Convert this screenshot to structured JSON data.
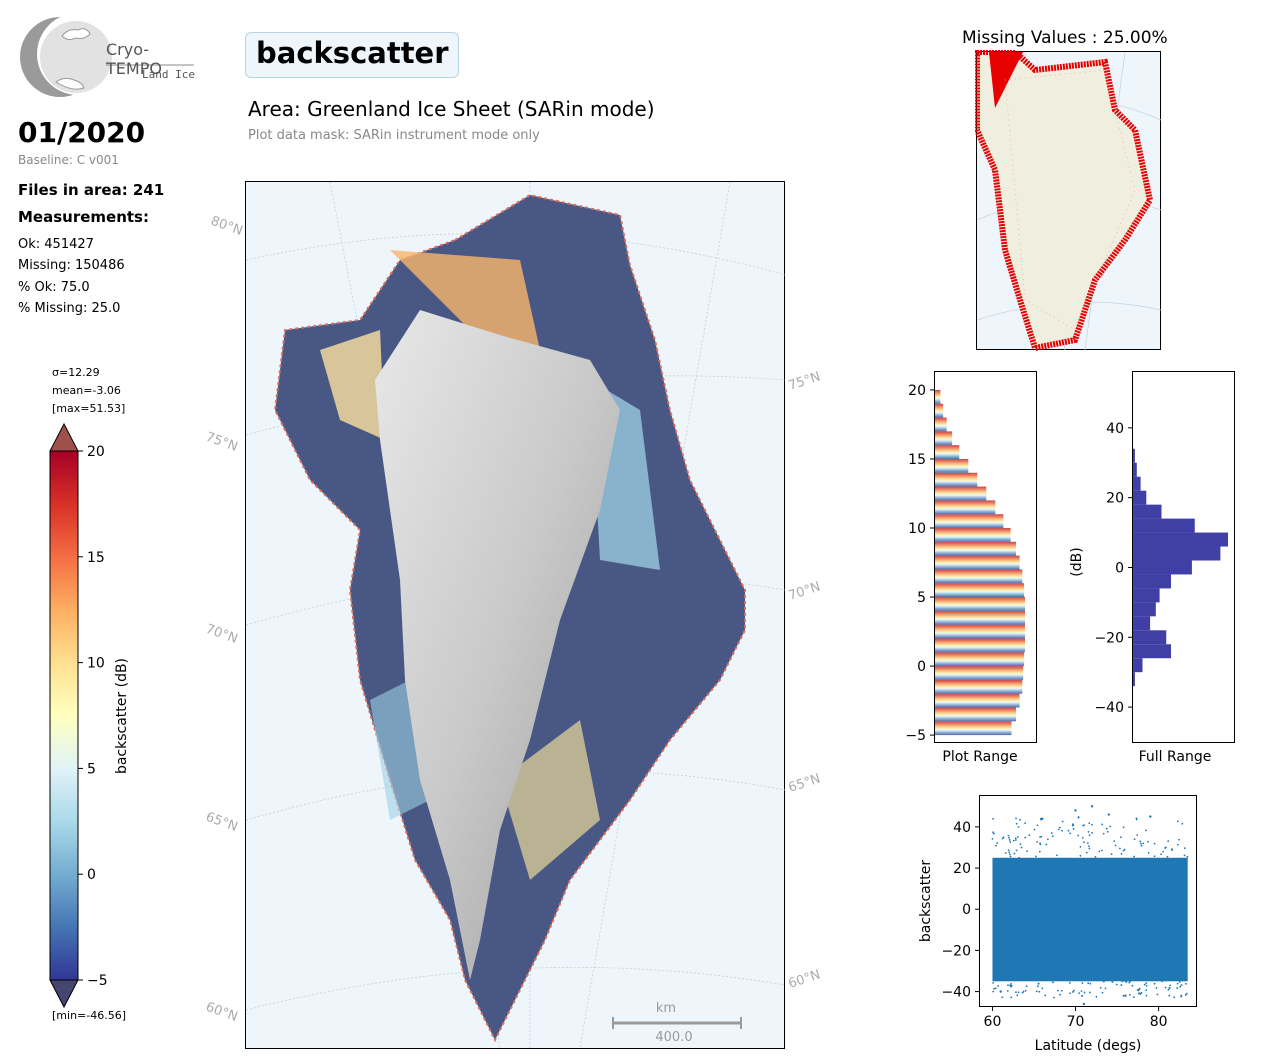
{
  "header": {
    "logo_name": "Cryo-TEMPO",
    "logo_sub": "Land Ice",
    "date": "01/2020",
    "baseline": "Baseline: C v001",
    "files_in_area": "Files in area: 241",
    "measurements_heading": "Measurements:",
    "stats": [
      "Ok: 451427",
      "Missing: 150486",
      "% Ok: 75.0",
      "% Missing: 25.0"
    ],
    "title": "backscatter",
    "area": "Area: Greenland Ice Sheet (SARin mode)",
    "mask_note": "Plot data mask: SARin instrument mode only"
  },
  "colorbar": {
    "sigma": "σ=12.29",
    "mean": "mean=-3.06",
    "max": "[max=51.53]",
    "min": "[min=-46.56]",
    "label": "backscatter (dB)",
    "ticks": [
      "20",
      "15",
      "10",
      "5",
      "0",
      "−5"
    ],
    "range": [
      -5,
      20
    ]
  },
  "map": {
    "lat_labels_left": [
      "80°N",
      "75°N",
      "70°N",
      "65°N",
      "60°N"
    ],
    "lat_labels_right": [
      "75°N",
      "70°N",
      "65°N",
      "60°N"
    ],
    "scale_unit": "km",
    "scale_value": "400.0"
  },
  "missing_map": {
    "title": "Missing Values : 25.00%"
  },
  "colors": {
    "ocean": "#eef6fc",
    "land": "#efeedf",
    "missing": "#e60000",
    "hist_full": "#3f3fa5",
    "scatter": "#1f77b4",
    "axis_grey": "#aaaaaa"
  },
  "chart_data": [
    {
      "type": "bar",
      "title": "",
      "xlabel": "Plot Range",
      "ylabel": "",
      "orientation": "horizontal",
      "ylim": [
        -5.5,
        21.3
      ],
      "yticks": [
        "20",
        "15",
        "10",
        "5",
        "0",
        "−5"
      ],
      "bins": [
        -5,
        -4,
        -3,
        -2,
        -1,
        0,
        1,
        2,
        3,
        4,
        5,
        6,
        7,
        8,
        9,
        10,
        11,
        12,
        13,
        14,
        15,
        16,
        17,
        18,
        19,
        20
      ],
      "counts": [
        85,
        90,
        94,
        97,
        98,
        99,
        100,
        100,
        100,
        100,
        99,
        97,
        94,
        90,
        84,
        76,
        67,
        57,
        47,
        37,
        27,
        19,
        13,
        9,
        6,
        4
      ]
    },
    {
      "type": "bar",
      "title": "",
      "xlabel": "Full Range",
      "ylabel": "(dB)",
      "orientation": "horizontal",
      "ylim": [
        -50,
        56
      ],
      "yticks": [
        "40",
        "20",
        "0",
        "−20",
        "−40"
      ],
      "bins": [
        -34,
        -30,
        -26,
        -22,
        -18,
        -14,
        -10,
        -6,
        -2,
        2,
        6,
        10,
        14,
        18,
        22,
        26,
        30,
        34
      ],
      "counts": [
        2,
        10,
        40,
        35,
        18,
        24,
        28,
        40,
        62,
        92,
        100,
        65,
        30,
        14,
        8,
        4,
        2,
        1
      ]
    },
    {
      "type": "scatter",
      "title": "",
      "xlabel": "Latitude (degs)",
      "ylabel": "backscatter",
      "xlim": [
        58.5,
        84.5
      ],
      "ylim": [
        -47,
        55
      ],
      "xticks": [
        "60",
        "70",
        "80"
      ],
      "yticks": [
        "40",
        "20",
        "0",
        "−20",
        "−40"
      ],
      "x_range": [
        60,
        83.5
      ],
      "dense_band": [
        -35,
        25
      ],
      "max_points": [
        [
          70,
          48
        ],
        [
          72,
          50
        ],
        [
          74,
          46
        ],
        [
          66,
          44
        ],
        [
          79,
          45
        ]
      ],
      "min_points": [
        [
          71,
          -46
        ],
        [
          61,
          -40
        ],
        [
          76,
          -42
        ]
      ]
    }
  ]
}
